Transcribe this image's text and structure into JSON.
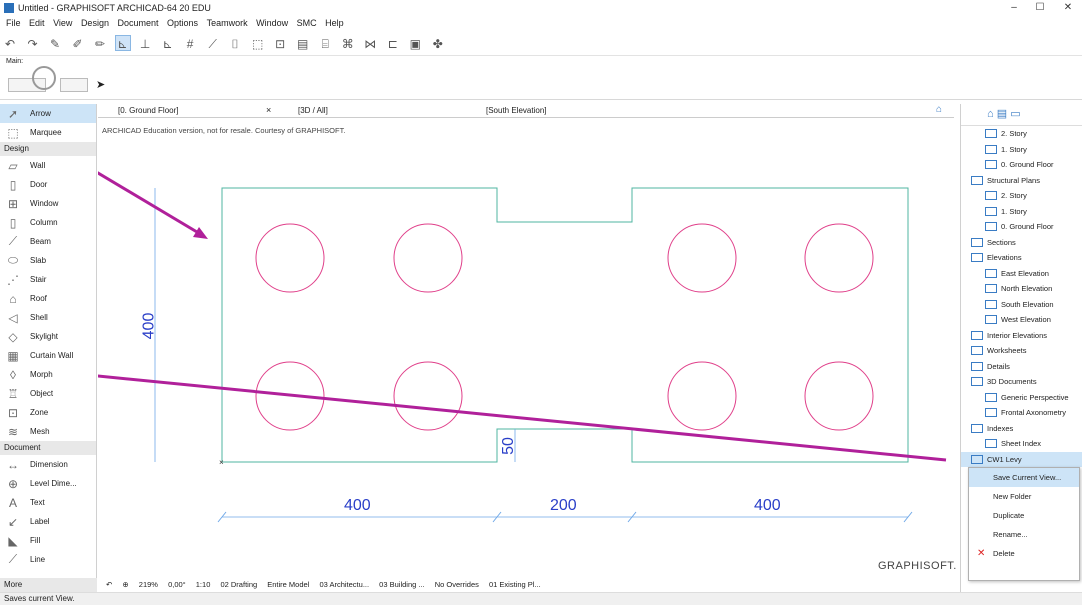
{
  "window": {
    "title": "Untitled - GRAPHISOFT ARCHICAD-64 20 EDU"
  },
  "menu": [
    "File",
    "Edit",
    "View",
    "Design",
    "Document",
    "Options",
    "Teamwork",
    "Window",
    "SMC",
    "Help"
  ],
  "infobox": {
    "label": "Main:"
  },
  "toolbox": {
    "items": [
      {
        "label": "Arrow",
        "icon": "arrow-icon"
      },
      {
        "label": "Marquee",
        "icon": "marquee-icon"
      },
      {
        "group": "Design"
      },
      {
        "label": "Wall",
        "icon": "wall-icon"
      },
      {
        "label": "Door",
        "icon": "door-icon"
      },
      {
        "label": "Window",
        "icon": "window-icon"
      },
      {
        "label": "Column",
        "icon": "column-icon"
      },
      {
        "label": "Beam",
        "icon": "beam-icon"
      },
      {
        "label": "Slab",
        "icon": "slab-icon"
      },
      {
        "label": "Stair",
        "icon": "stair-icon"
      },
      {
        "label": "Roof",
        "icon": "roof-icon"
      },
      {
        "label": "Shell",
        "icon": "shell-icon"
      },
      {
        "label": "Skylight",
        "icon": "skylight-icon"
      },
      {
        "label": "Curtain Wall",
        "icon": "curtain-wall-icon"
      },
      {
        "label": "Morph",
        "icon": "morph-icon"
      },
      {
        "label": "Object",
        "icon": "object-icon"
      },
      {
        "label": "Zone",
        "icon": "zone-icon"
      },
      {
        "label": "Mesh",
        "icon": "mesh-icon"
      },
      {
        "group": "Document"
      },
      {
        "label": "Dimension",
        "icon": "dimension-icon"
      },
      {
        "label": "Level Dime...",
        "icon": "level-dimension-icon"
      },
      {
        "label": "Text",
        "icon": "text-icon"
      },
      {
        "label": "Label",
        "icon": "label-icon"
      },
      {
        "label": "Fill",
        "icon": "fill-icon"
      },
      {
        "label": "Line",
        "icon": "line-icon"
      }
    ],
    "more": "More"
  },
  "tabs": [
    "[0. Ground Floor]",
    "[3D / All]",
    "[South Elevation]"
  ],
  "canvas": {
    "edu_notice": "ARCHICAD Education version, not for resale. Courtesy of GRAPHISOFT.",
    "logo": "GRAPHISOFT.",
    "dims": {
      "height": "400",
      "notch": "50",
      "d1": "400",
      "d2": "200",
      "d3": "400"
    }
  },
  "navigator": {
    "items": [
      {
        "label": "2. Story",
        "indent": 2
      },
      {
        "label": "1. Story",
        "indent": 2
      },
      {
        "label": "0. Ground Floor",
        "indent": 2
      },
      {
        "label": "Structural Plans",
        "indent": 1
      },
      {
        "label": "2. Story",
        "indent": 2
      },
      {
        "label": "1. Story",
        "indent": 2
      },
      {
        "label": "0. Ground Floor",
        "indent": 2
      },
      {
        "label": "Sections",
        "indent": 1
      },
      {
        "label": "Elevations",
        "indent": 1
      },
      {
        "label": "East Elevation",
        "indent": 2
      },
      {
        "label": "North Elevation",
        "indent": 2
      },
      {
        "label": "South Elevation",
        "indent": 2
      },
      {
        "label": "West Elevation",
        "indent": 2
      },
      {
        "label": "Interior Elevations",
        "indent": 1
      },
      {
        "label": "Worksheets",
        "indent": 1
      },
      {
        "label": "Details",
        "indent": 1
      },
      {
        "label": "3D Documents",
        "indent": 1
      },
      {
        "label": "Generic Perspective",
        "indent": 2
      },
      {
        "label": "Frontal Axonometry",
        "indent": 2
      },
      {
        "label": "Indexes",
        "indent": 1
      },
      {
        "label": "Sheet Index",
        "indent": 2
      },
      {
        "label": "CW1 Levy",
        "indent": 1
      }
    ]
  },
  "context_menu": [
    "Save Current View...",
    "New Folder",
    "Duplicate",
    "Rename...",
    "Delete"
  ],
  "bottombar": {
    "zoom": "219%",
    "angle": "0,00°",
    "scale": "1:10",
    "layers": "02 Drafting",
    "model": "Entire Model",
    "pen": "03 Architectu...",
    "building": "03 Building ...",
    "overrides": "No Overrides",
    "reno": "01 Existing Pl..."
  },
  "status": "Saves current View.",
  "colors": {
    "accent": "#b0209a",
    "plan": "#4fb5a0",
    "circle": "#e0408a",
    "dim": "#2a3fc8"
  }
}
